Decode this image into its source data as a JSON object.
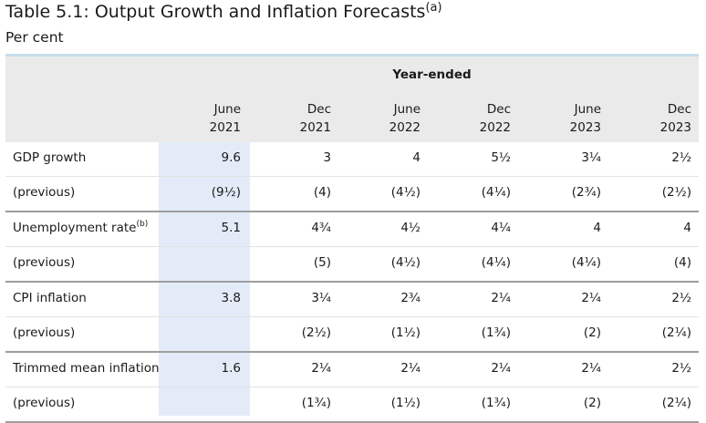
{
  "title": "Table 5.1: Output Growth and Inflation Forecasts",
  "title_note": "(a)",
  "subtitle": "Per cent",
  "group_header": "Year-ended",
  "columns": [
    {
      "month": "June",
      "year": "2021"
    },
    {
      "month": "Dec",
      "year": "2021"
    },
    {
      "month": "June",
      "year": "2022"
    },
    {
      "month": "Dec",
      "year": "2022"
    },
    {
      "month": "June",
      "year": "2023"
    },
    {
      "month": "Dec",
      "year": "2023"
    }
  ],
  "rows": [
    {
      "label": "GDP growth",
      "note": "",
      "values": [
        "9.6",
        "3",
        "4",
        "5½",
        "3¼",
        "2½"
      ]
    },
    {
      "label": "(previous)",
      "note": "",
      "values": [
        "(9½)",
        "(4)",
        "(4½)",
        "(4¼)",
        "(2¾)",
        "(2½)"
      ]
    },
    {
      "label": "Unemployment rate",
      "note": "(b)",
      "values": [
        "5.1",
        "4¾",
        "4½",
        "4¼",
        "4",
        "4"
      ]
    },
    {
      "label": "(previous)",
      "note": "",
      "values": [
        "",
        "(5)",
        "(4½)",
        "(4¼)",
        "(4¼)",
        "(4)"
      ]
    },
    {
      "label": "CPI inflation",
      "note": "",
      "values": [
        "3.8",
        "3¼",
        "2¾",
        "2¼",
        "2¼",
        "2½"
      ]
    },
    {
      "label": "(previous)",
      "note": "",
      "values": [
        "",
        "(2½)",
        "(1½)",
        "(1¾)",
        "(2)",
        "(2¼)"
      ]
    },
    {
      "label": "Trimmed mean inflation",
      "note": "",
      "values": [
        "1.6",
        "2¼",
        "2¼",
        "2¼",
        "2¼",
        "2½"
      ]
    },
    {
      "label": "(previous)",
      "note": "",
      "values": [
        "",
        "(1¾)",
        "(1½)",
        "(1¾)",
        "(2)",
        "(2¼)"
      ]
    }
  ],
  "colors": {
    "header_bg": "#eaeaea",
    "highlight_col": "#e4ebf8",
    "top_rule": "#c6dcec",
    "group_rule": "#9d9d9d"
  }
}
